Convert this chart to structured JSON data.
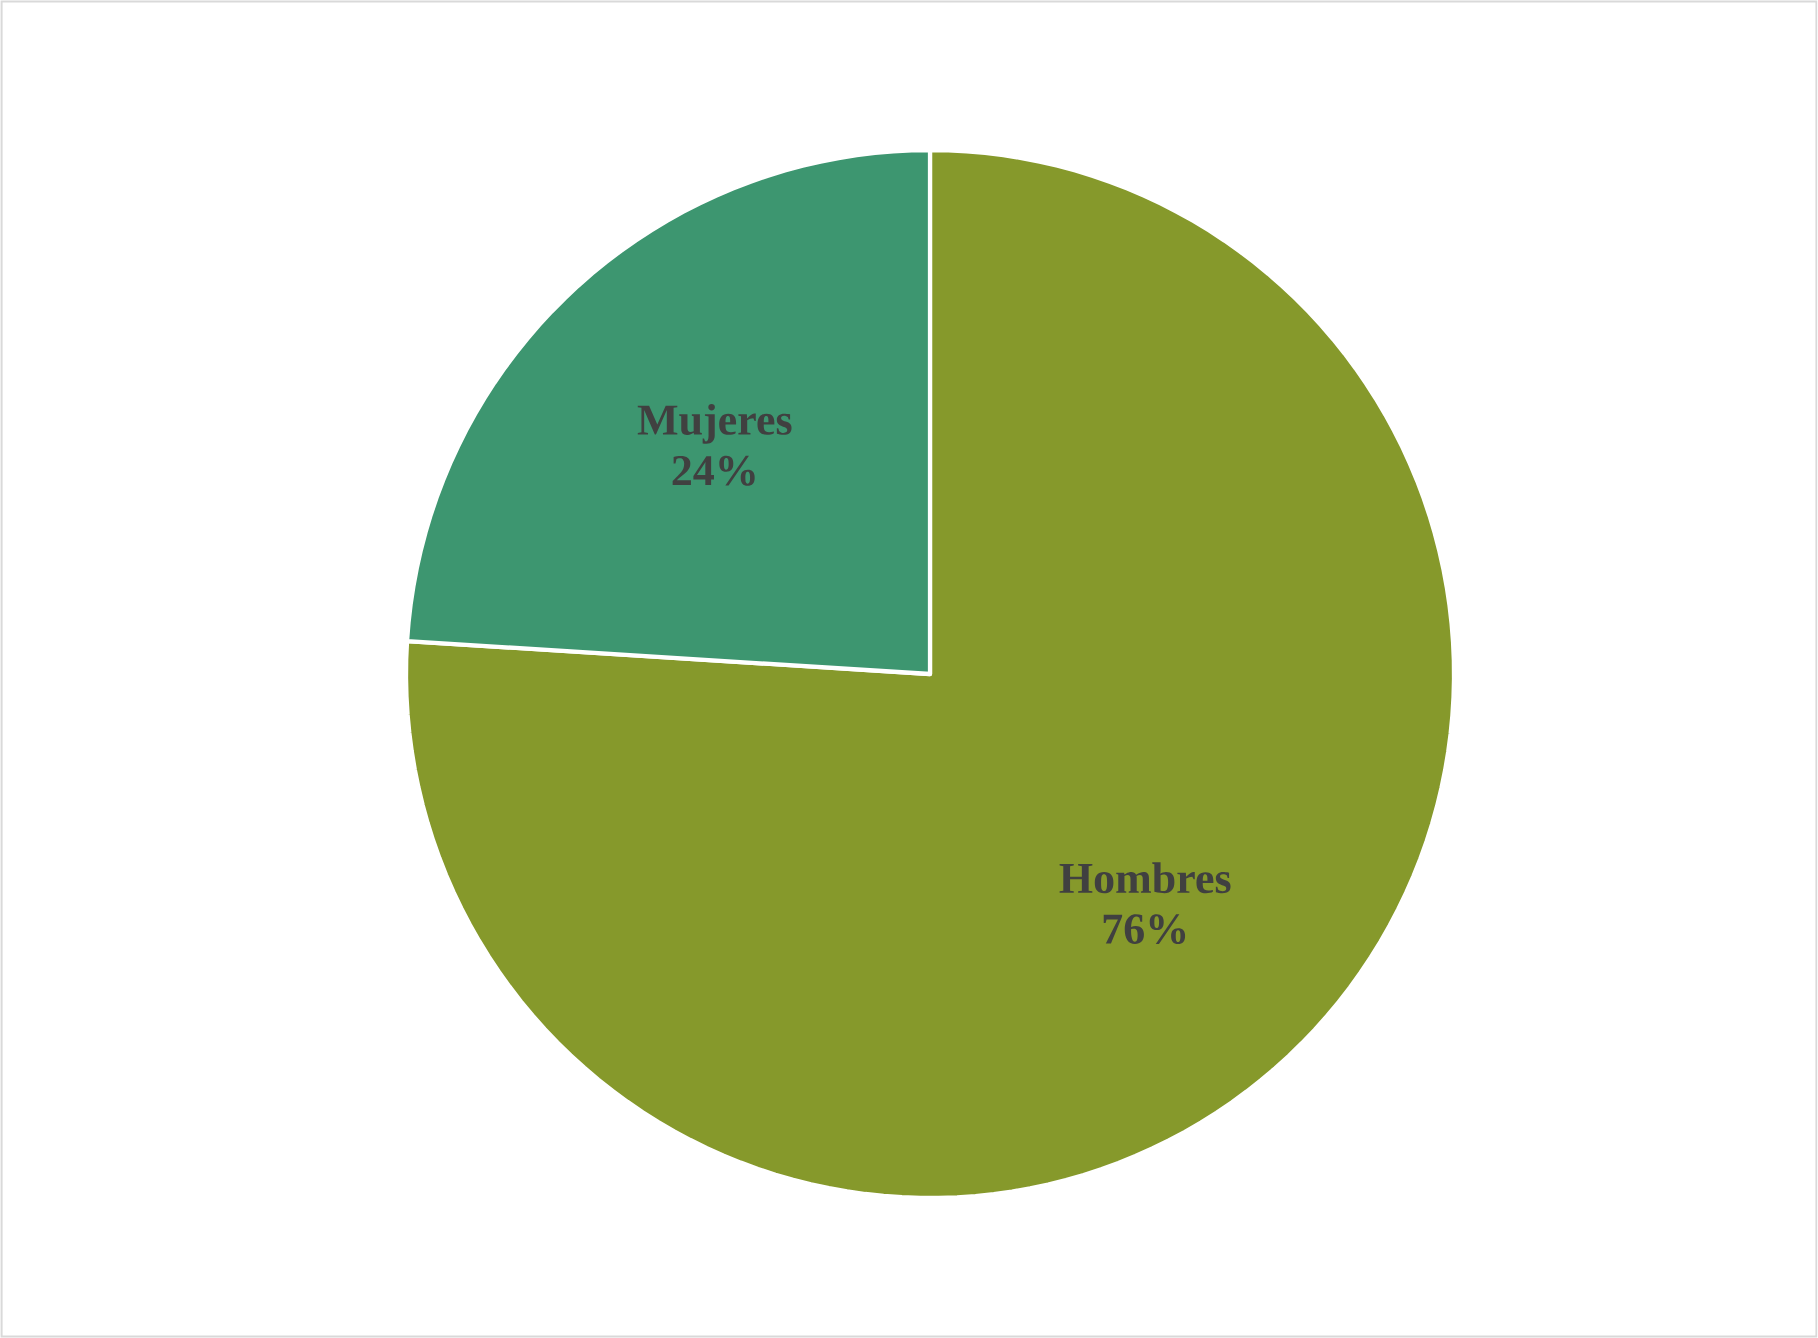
{
  "chart_data": {
    "type": "pie",
    "categories": [
      "Hombres",
      "Mujeres"
    ],
    "values": [
      76,
      24
    ],
    "value_labels": [
      "76%",
      "24%"
    ],
    "colors": [
      "#86992b",
      "#3d9670"
    ]
  }
}
